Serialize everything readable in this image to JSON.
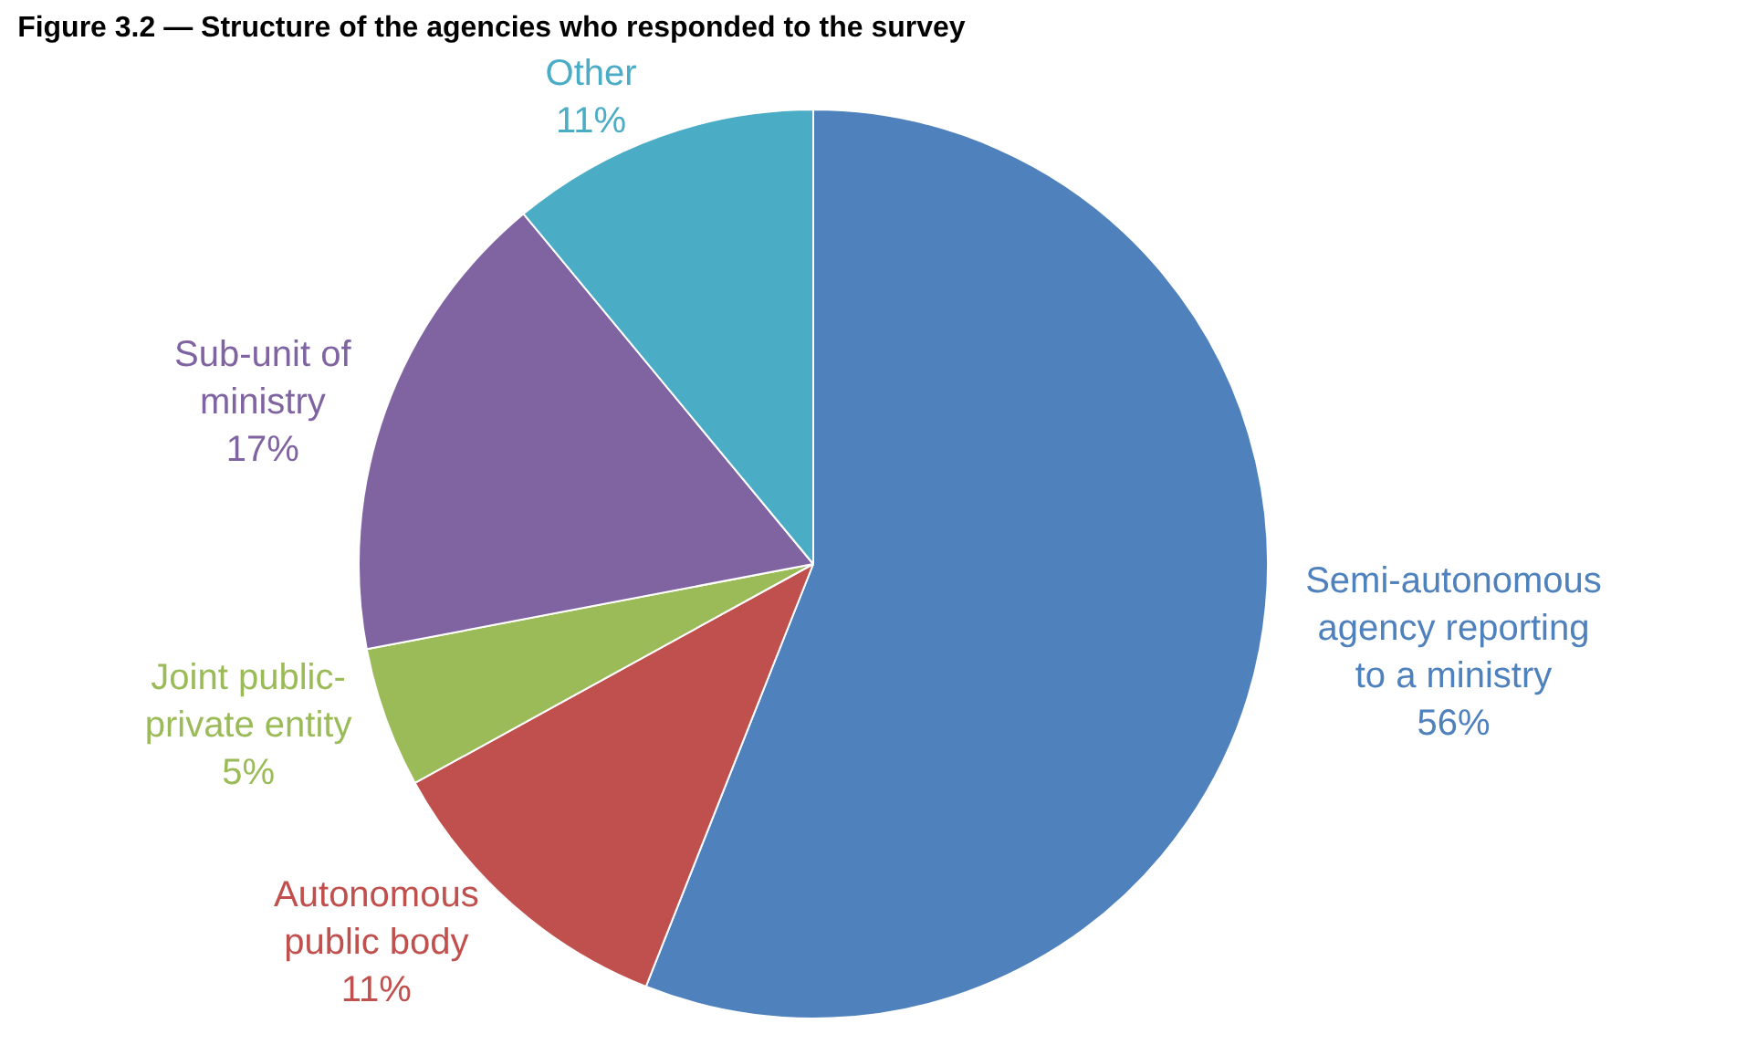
{
  "chart_data": {
    "type": "pie",
    "title": "Figure 3.2 — Structure of the agencies who responded to the survey",
    "categories": [
      "Semi-autonomous agency reporting to a ministry",
      "Autonomous public body",
      "Joint public-private entity",
      "Sub-unit of ministry",
      "Other"
    ],
    "values": [
      56,
      11,
      5,
      17,
      11
    ],
    "value_labels": [
      "56%",
      "11%",
      "5%",
      "17%",
      "11%"
    ],
    "colors": [
      "#4f81bd",
      "#c0504d",
      "#9bbb59",
      "#8064a2",
      "#4bacc6"
    ],
    "legend": false
  }
}
